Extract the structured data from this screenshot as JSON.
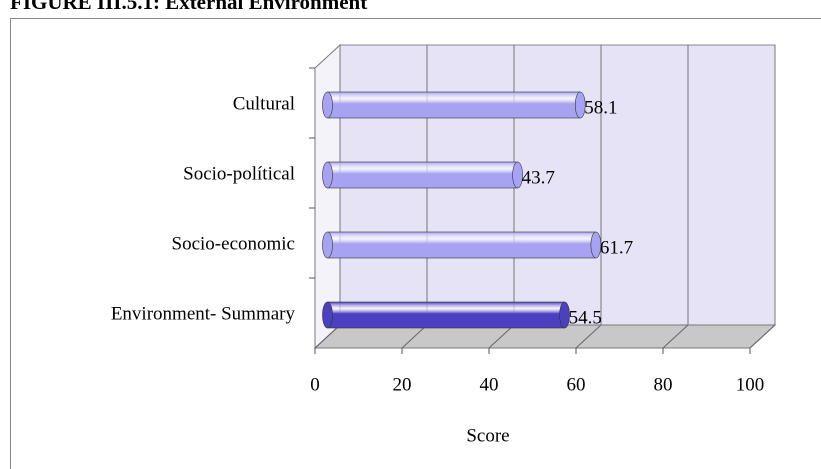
{
  "chart_data": {
    "type": "bar3d_horizontal",
    "title": "FIGURE III.5.1: External Environment",
    "categories": [
      "Cultural",
      "Socio-polítical",
      "Socio-economic",
      "Environment- Summary"
    ],
    "values": [
      58.1,
      43.7,
      61.7,
      54.5
    ],
    "colors": [
      "#a7a3f2",
      "#a7a3f2",
      "#a7a3f2",
      "#4a40c0"
    ],
    "x_label": "Score",
    "xlim": [
      0,
      100
    ],
    "xticks": [
      0,
      20,
      40,
      60,
      80,
      100
    ],
    "grid": true
  }
}
